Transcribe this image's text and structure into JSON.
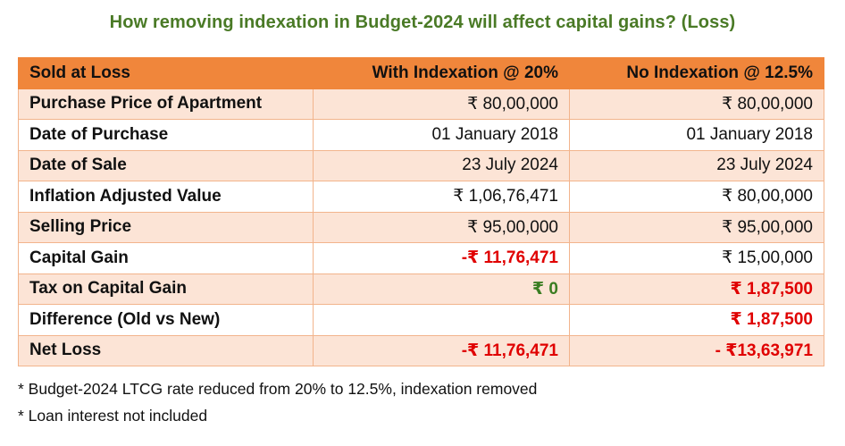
{
  "title": "How removing indexation in Budget-2024 will affect capital gains? (Loss)",
  "table": {
    "headers": [
      "Sold at Loss",
      "With Indexation @ 20%",
      "No Indexation @ 12.5%"
    ],
    "rows": [
      {
        "label": "Purchase Price of Apartment",
        "with": "₹ 80,00,000",
        "without": "₹ 80,00,000"
      },
      {
        "label": "Date of Purchase",
        "with": "01 January 2018",
        "without": "01 January 2018"
      },
      {
        "label": "Date of Sale",
        "with": "23 July 2024",
        "without": "23 July 2024"
      },
      {
        "label": "Inflation Adjusted Value",
        "with": "₹ 1,06,76,471",
        "without": "₹ 80,00,000"
      },
      {
        "label": "Selling Price",
        "with": "₹ 95,00,000",
        "without": "₹ 95,00,000"
      },
      {
        "label": "Capital Gain",
        "with": "-₹ 11,76,471",
        "without": "₹ 15,00,000"
      },
      {
        "label": "Tax on Capital Gain",
        "with": "₹ 0",
        "without": "₹ 1,87,500"
      },
      {
        "label": "Difference (Old vs New)",
        "with": "",
        "without": "₹ 1,87,500"
      },
      {
        "label": "Net Loss",
        "with": "-₹ 11,76,471",
        "without": "- ₹13,63,971"
      }
    ]
  },
  "notes": [
    "* Budget-2024 LTCG rate reduced from 20% to 12.5%, indexation removed",
    "* Loan interest not included"
  ],
  "colors": {
    "title": "#4a7a26",
    "header_bg": "#f0863b",
    "row_shade": "#fce4d6",
    "negative": "#e00000",
    "zero_tax": "#3a7d22"
  }
}
